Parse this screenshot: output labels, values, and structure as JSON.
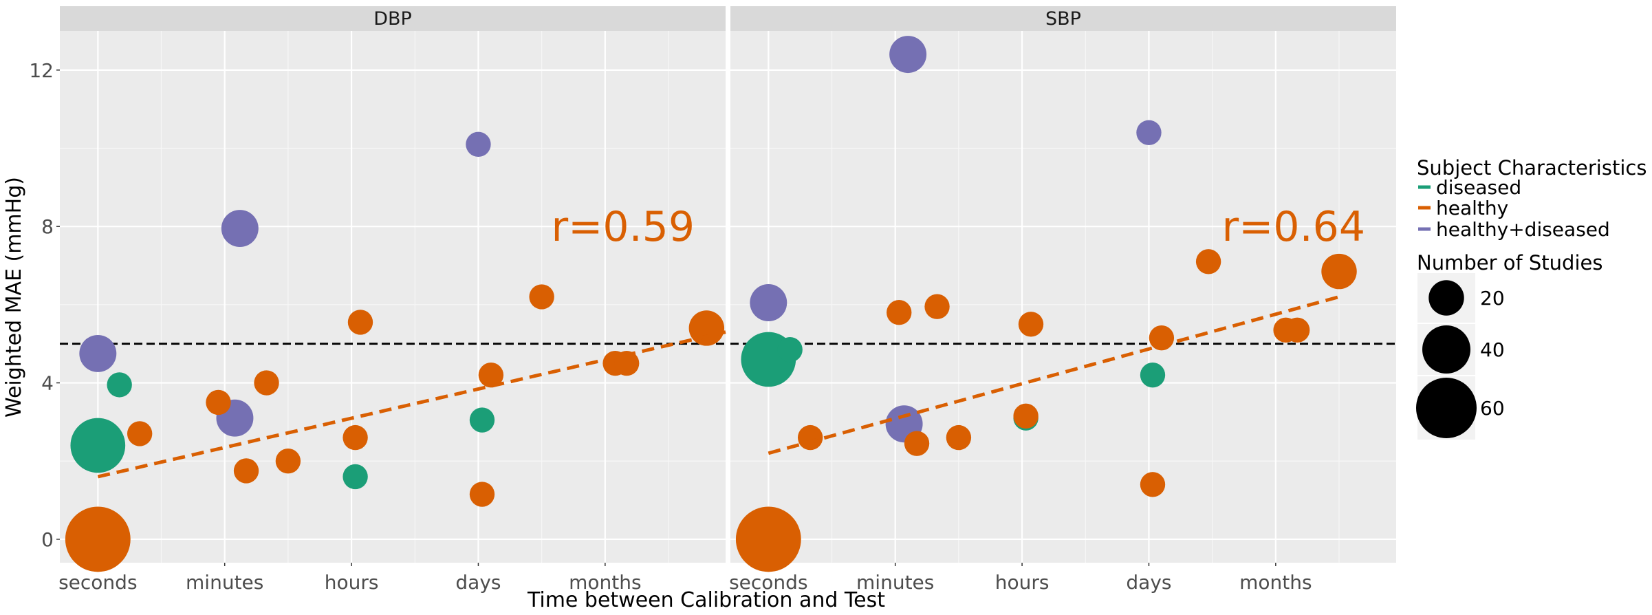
{
  "chart_data": {
    "type": "scatter",
    "panels": [
      {
        "title": "DBP",
        "r_label": "r=0.59",
        "fit": {
          "x1": 0,
          "y1": 1.6,
          "x2": 4.95,
          "y2": 5.3
        },
        "points": [
          {
            "x": 0,
            "y": 0.0,
            "n": 68,
            "group": "healthy"
          },
          {
            "x": 0,
            "y": 2.4,
            "n": 48,
            "group": "diseased"
          },
          {
            "x": 0,
            "y": 4.75,
            "n": 22,
            "group": "healthy+diseased"
          },
          {
            "x": 0.17,
            "y": 3.95,
            "n": 10,
            "group": "diseased"
          },
          {
            "x": 0.33,
            "y": 2.7,
            "n": 10,
            "group": "healthy"
          },
          {
            "x": 0.95,
            "y": 3.5,
            "n": 10,
            "group": "healthy"
          },
          {
            "x": 1.08,
            "y": 3.1,
            "n": 22,
            "group": "healthy+diseased"
          },
          {
            "x": 1.12,
            "y": 7.95,
            "n": 22,
            "group": "healthy+diseased"
          },
          {
            "x": 1.17,
            "y": 1.75,
            "n": 10,
            "group": "healthy"
          },
          {
            "x": 1.33,
            "y": 4.0,
            "n": 10,
            "group": "healthy"
          },
          {
            "x": 1.5,
            "y": 2.0,
            "n": 10,
            "group": "healthy"
          },
          {
            "x": 2.03,
            "y": 1.6,
            "n": 10,
            "group": "diseased"
          },
          {
            "x": 2.03,
            "y": 2.6,
            "n": 10,
            "group": "healthy"
          },
          {
            "x": 2.07,
            "y": 5.55,
            "n": 10,
            "group": "healthy"
          },
          {
            "x": 3.0,
            "y": 10.1,
            "n": 10,
            "group": "healthy+diseased"
          },
          {
            "x": 3.03,
            "y": 3.05,
            "n": 10,
            "group": "diseased"
          },
          {
            "x": 3.03,
            "y": 1.15,
            "n": 10,
            "group": "healthy"
          },
          {
            "x": 3.1,
            "y": 4.2,
            "n": 10,
            "group": "healthy"
          },
          {
            "x": 3.5,
            "y": 6.2,
            "n": 10,
            "group": "healthy"
          },
          {
            "x": 4.08,
            "y": 4.5,
            "n": 10,
            "group": "healthy"
          },
          {
            "x": 4.17,
            "y": 4.5,
            "n": 10,
            "group": "healthy"
          },
          {
            "x": 4.8,
            "y": 5.4,
            "n": 20,
            "group": "healthy"
          }
        ]
      },
      {
        "title": "SBP",
        "r_label": "r=0.64",
        "fit": {
          "x1": 0,
          "y1": 2.2,
          "x2": 4.5,
          "y2": 6.2
        },
        "points": [
          {
            "x": 0,
            "y": 0.0,
            "n": 68,
            "group": "healthy"
          },
          {
            "x": 0,
            "y": 4.6,
            "n": 48,
            "group": "diseased"
          },
          {
            "x": 0,
            "y": 6.05,
            "n": 22,
            "group": "healthy+diseased"
          },
          {
            "x": 0.17,
            "y": 4.85,
            "n": 10,
            "group": "diseased"
          },
          {
            "x": 0.33,
            "y": 2.6,
            "n": 10,
            "group": "healthy"
          },
          {
            "x": 1.03,
            "y": 5.8,
            "n": 10,
            "group": "healthy"
          },
          {
            "x": 1.07,
            "y": 2.95,
            "n": 22,
            "group": "healthy+diseased"
          },
          {
            "x": 1.1,
            "y": 12.4,
            "n": 22,
            "group": "healthy+diseased"
          },
          {
            "x": 1.17,
            "y": 2.45,
            "n": 10,
            "group": "healthy"
          },
          {
            "x": 1.33,
            "y": 5.95,
            "n": 10,
            "group": "healthy"
          },
          {
            "x": 1.5,
            "y": 2.6,
            "n": 10,
            "group": "healthy"
          },
          {
            "x": 2.03,
            "y": 3.1,
            "n": 10,
            "group": "diseased"
          },
          {
            "x": 2.03,
            "y": 3.15,
            "n": 10,
            "group": "healthy"
          },
          {
            "x": 2.07,
            "y": 5.5,
            "n": 10,
            "group": "healthy"
          },
          {
            "x": 3.0,
            "y": 10.4,
            "n": 10,
            "group": "healthy+diseased"
          },
          {
            "x": 3.03,
            "y": 4.2,
            "n": 10,
            "group": "diseased"
          },
          {
            "x": 3.03,
            "y": 1.4,
            "n": 10,
            "group": "healthy"
          },
          {
            "x": 3.1,
            "y": 5.15,
            "n": 10,
            "group": "healthy"
          },
          {
            "x": 3.47,
            "y": 7.1,
            "n": 10,
            "group": "healthy"
          },
          {
            "x": 4.08,
            "y": 5.35,
            "n": 10,
            "group": "healthy"
          },
          {
            "x": 4.17,
            "y": 5.35,
            "n": 10,
            "group": "healthy"
          },
          {
            "x": 4.5,
            "y": 6.85,
            "n": 20,
            "group": "healthy"
          }
        ]
      }
    ],
    "x_tick_labels": [
      "seconds",
      "minutes",
      "hours",
      "days",
      "months"
    ],
    "x_tick_values": [
      0,
      1,
      2,
      3,
      4
    ],
    "xlim": [
      -0.3,
      4.95
    ],
    "y_ticks": [
      0,
      4,
      8,
      12
    ],
    "ylim": [
      -0.6,
      13.0
    ],
    "reference_line_y": 5,
    "xlabel": "Time between Calibration and Test",
    "ylabel": "Weighted MAE (mmHg)",
    "grid": true,
    "legend_position": "right",
    "legend": {
      "color_title": "Subject Characteristics",
      "groups": [
        {
          "name": "diseased",
          "color": "#1B9E77"
        },
        {
          "name": "healthy",
          "color": "#D95F02"
        },
        {
          "name": "healthy+diseased",
          "color": "#7570B3"
        }
      ],
      "size_title": "Number of Studies",
      "sizes": [
        20,
        40,
        60
      ]
    }
  }
}
